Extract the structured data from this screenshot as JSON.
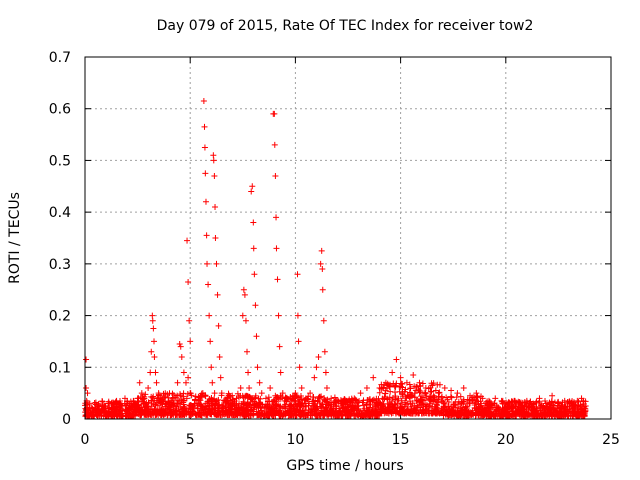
{
  "chart_data": {
    "type": "scatter",
    "title": "Day 079 of 2015, Rate Of TEC Index for receiver tow2",
    "xlabel": "GPS time / hours",
    "ylabel": "ROTI / TECUs",
    "xlim": [
      0,
      25
    ],
    "ylim": [
      0,
      0.7
    ],
    "xticks": [
      0,
      5,
      10,
      15,
      20,
      25
    ],
    "yticks": [
      0,
      0.1,
      0.2,
      0.3,
      0.4,
      0.5,
      0.6,
      0.7
    ],
    "xtick_labels": [
      "0",
      "5",
      "10",
      "15",
      "20",
      "25"
    ],
    "ytick_labels": [
      "0",
      "0.1",
      "0.2",
      "0.3",
      "0.4",
      "0.5",
      "0.6",
      "0.7"
    ],
    "grid": true,
    "marker": "+",
    "color": "#ff0000",
    "series": [
      {
        "name": "ROTI",
        "points": [
          [
            0.05,
            0.115
          ],
          [
            0.05,
            0.06
          ],
          [
            0.08,
            0.035
          ],
          [
            0.1,
            0.028
          ],
          [
            0.02,
            0.02
          ],
          [
            0.12,
            0.05
          ],
          [
            0.1,
            0.01
          ],
          [
            0.3,
            0.022
          ],
          [
            0.5,
            0.018
          ],
          [
            0.7,
            0.025
          ],
          [
            0.9,
            0.02
          ],
          [
            1.1,
            0.03
          ],
          [
            1.3,
            0.02
          ],
          [
            1.5,
            0.035
          ],
          [
            1.7,
            0.025
          ],
          [
            1.9,
            0.04
          ],
          [
            2.1,
            0.03
          ],
          [
            2.3,
            0.035
          ],
          [
            2.5,
            0.04
          ],
          [
            2.6,
            0.07
          ],
          [
            2.7,
            0.05
          ],
          [
            2.8,
            0.03
          ],
          [
            3.0,
            0.06
          ],
          [
            3.1,
            0.09
          ],
          [
            3.15,
            0.13
          ],
          [
            3.2,
            0.2
          ],
          [
            3.22,
            0.19
          ],
          [
            3.25,
            0.175
          ],
          [
            3.28,
            0.15
          ],
          [
            3.3,
            0.12
          ],
          [
            3.35,
            0.09
          ],
          [
            3.4,
            0.07
          ],
          [
            3.5,
            0.05
          ],
          [
            3.6,
            0.04
          ],
          [
            3.8,
            0.03
          ],
          [
            4.0,
            0.025
          ],
          [
            4.2,
            0.03
          ],
          [
            4.4,
            0.07
          ],
          [
            4.5,
            0.145
          ],
          [
            4.55,
            0.14
          ],
          [
            4.6,
            0.12
          ],
          [
            4.7,
            0.09
          ],
          [
            4.8,
            0.07
          ],
          [
            4.85,
            0.345
          ],
          [
            4.9,
            0.265
          ],
          [
            4.95,
            0.19
          ],
          [
            5.0,
            0.15
          ],
          [
            4.9,
            0.08
          ],
          [
            5.0,
            0.05
          ],
          [
            5.2,
            0.03
          ],
          [
            5.4,
            0.035
          ],
          [
            5.6,
            0.05
          ],
          [
            5.65,
            0.615
          ],
          [
            5.68,
            0.565
          ],
          [
            5.7,
            0.525
          ],
          [
            5.72,
            0.475
          ],
          [
            5.75,
            0.42
          ],
          [
            5.78,
            0.355
          ],
          [
            5.8,
            0.3
          ],
          [
            5.85,
            0.26
          ],
          [
            5.9,
            0.2
          ],
          [
            5.95,
            0.15
          ],
          [
            6.0,
            0.1
          ],
          [
            6.05,
            0.07
          ],
          [
            6.1,
            0.51
          ],
          [
            6.12,
            0.5
          ],
          [
            6.15,
            0.47
          ],
          [
            6.18,
            0.41
          ],
          [
            6.2,
            0.35
          ],
          [
            6.25,
            0.3
          ],
          [
            6.3,
            0.24
          ],
          [
            6.35,
            0.18
          ],
          [
            6.4,
            0.12
          ],
          [
            6.45,
            0.08
          ],
          [
            6.5,
            0.05
          ],
          [
            6.8,
            0.04
          ],
          [
            7.0,
            0.03
          ],
          [
            7.2,
            0.04
          ],
          [
            7.4,
            0.06
          ],
          [
            7.5,
            0.2
          ],
          [
            7.55,
            0.25
          ],
          [
            7.6,
            0.24
          ],
          [
            7.65,
            0.19
          ],
          [
            7.7,
            0.13
          ],
          [
            7.75,
            0.09
          ],
          [
            7.8,
            0.06
          ],
          [
            7.9,
            0.44
          ],
          [
            7.95,
            0.45
          ],
          [
            8.0,
            0.38
          ],
          [
            8.02,
            0.33
          ],
          [
            8.05,
            0.28
          ],
          [
            8.1,
            0.22
          ],
          [
            8.15,
            0.16
          ],
          [
            8.2,
            0.1
          ],
          [
            8.3,
            0.07
          ],
          [
            8.4,
            0.05
          ],
          [
            8.6,
            0.04
          ],
          [
            8.8,
            0.06
          ],
          [
            8.95,
            0.59
          ],
          [
            9.0,
            0.59
          ],
          [
            9.02,
            0.53
          ],
          [
            9.05,
            0.47
          ],
          [
            9.08,
            0.39
          ],
          [
            9.1,
            0.33
          ],
          [
            9.15,
            0.27
          ],
          [
            9.2,
            0.2
          ],
          [
            9.25,
            0.14
          ],
          [
            9.3,
            0.09
          ],
          [
            9.4,
            0.05
          ],
          [
            9.6,
            0.04
          ],
          [
            9.8,
            0.035
          ],
          [
            10.0,
            0.05
          ],
          [
            10.1,
            0.28
          ],
          [
            10.12,
            0.2
          ],
          [
            10.15,
            0.15
          ],
          [
            10.2,
            0.1
          ],
          [
            10.3,
            0.06
          ],
          [
            10.5,
            0.04
          ],
          [
            10.7,
            0.05
          ],
          [
            10.9,
            0.08
          ],
          [
            11.0,
            0.1
          ],
          [
            11.1,
            0.12
          ],
          [
            11.2,
            0.3
          ],
          [
            11.25,
            0.325
          ],
          [
            11.28,
            0.29
          ],
          [
            11.3,
            0.25
          ],
          [
            11.35,
            0.19
          ],
          [
            11.4,
            0.13
          ],
          [
            11.45,
            0.09
          ],
          [
            11.5,
            0.06
          ],
          [
            11.7,
            0.04
          ],
          [
            11.9,
            0.035
          ],
          [
            12.2,
            0.03
          ],
          [
            12.5,
            0.035
          ],
          [
            12.8,
            0.04
          ],
          [
            13.1,
            0.05
          ],
          [
            13.4,
            0.06
          ],
          [
            13.7,
            0.08
          ],
          [
            14.0,
            0.06
          ],
          [
            14.3,
            0.07
          ],
          [
            14.6,
            0.09
          ],
          [
            14.8,
            0.115
          ],
          [
            15.0,
            0.08
          ],
          [
            15.3,
            0.07
          ],
          [
            15.6,
            0.085
          ],
          [
            15.9,
            0.07
          ],
          [
            16.2,
            0.06
          ],
          [
            16.5,
            0.065
          ],
          [
            16.8,
            0.05
          ],
          [
            17.1,
            0.06
          ],
          [
            17.4,
            0.055
          ],
          [
            17.7,
            0.05
          ],
          [
            18.0,
            0.06
          ],
          [
            18.3,
            0.045
          ],
          [
            18.6,
            0.05
          ],
          [
            18.9,
            0.04
          ],
          [
            19.2,
            0.035
          ],
          [
            19.5,
            0.04
          ],
          [
            19.8,
            0.035
          ],
          [
            20.1,
            0.03
          ],
          [
            20.4,
            0.035
          ],
          [
            20.7,
            0.03
          ],
          [
            21.0,
            0.035
          ],
          [
            21.3,
            0.03
          ],
          [
            21.6,
            0.04
          ],
          [
            21.9,
            0.03
          ],
          [
            22.2,
            0.045
          ],
          [
            22.5,
            0.03
          ],
          [
            22.8,
            0.035
          ],
          [
            23.1,
            0.03
          ],
          [
            23.4,
            0.035
          ],
          [
            23.6,
            0.04
          ],
          [
            23.75,
            0.02
          ]
        ]
      }
    ],
    "baseline_noise": {
      "description": "dense band of low ROTI values across the day",
      "segments": [
        {
          "x_from": 0.0,
          "x_to": 2.5,
          "y_min": 0.0,
          "y_max": 0.035
        },
        {
          "x_from": 2.5,
          "x_to": 7.5,
          "y_min": 0.0,
          "y_max": 0.05
        },
        {
          "x_from": 7.5,
          "x_to": 12.0,
          "y_min": 0.0,
          "y_max": 0.045
        },
        {
          "x_from": 12.0,
          "x_to": 14.0,
          "y_min": 0.0,
          "y_max": 0.04
        },
        {
          "x_from": 14.0,
          "x_to": 17.0,
          "y_min": 0.0,
          "y_max": 0.07
        },
        {
          "x_from": 17.0,
          "x_to": 19.0,
          "y_min": 0.0,
          "y_max": 0.045
        },
        {
          "x_from": 19.0,
          "x_to": 23.8,
          "y_min": 0.0,
          "y_max": 0.035
        }
      ]
    }
  }
}
